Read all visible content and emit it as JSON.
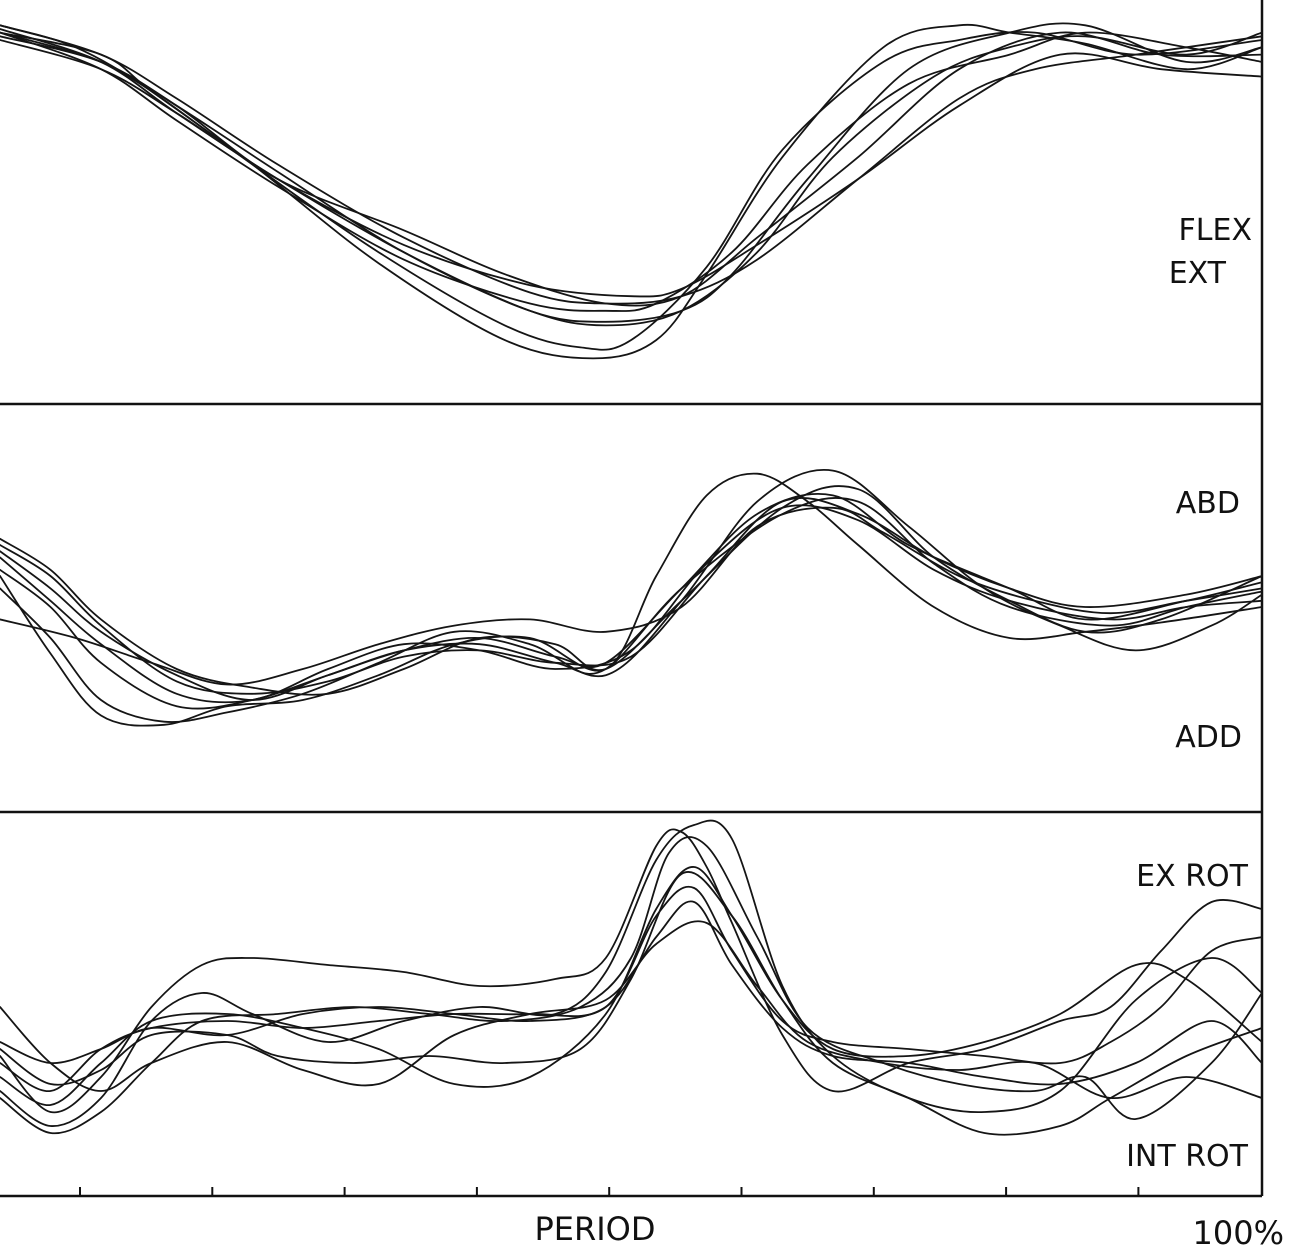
{
  "chart_data": {
    "type": "line",
    "x_axis": {
      "label": "PERIOD",
      "end_label": "100%",
      "range": [
        0,
        100
      ],
      "ticks": [
        10,
        20,
        30,
        40,
        50,
        60,
        70,
        80,
        90
      ],
      "tick_labels": []
    },
    "note": "Overlaid traces of repeated cycles; y units not shown, values are relative (0 = bottom, 1 = top of each panel).",
    "panels": [
      {
        "label_top": "FLEX",
        "label_bottom": "EXT",
        "ylim": [
          0,
          1
        ],
        "traces": [
          {
            "x": [
              0,
              8,
              12,
              20,
              30,
              40,
              47,
              52,
              56,
              62,
              70,
              76,
              80,
              86,
              94,
              100
            ],
            "y": [
              0.96,
              0.9,
              0.8,
              0.6,
              0.33,
              0.12,
              0.07,
              0.12,
              0.3,
              0.62,
              0.92,
              0.98,
              0.96,
              0.93,
              0.86,
              0.92
            ]
          },
          {
            "x": [
              0,
              6,
              12,
              20,
              30,
              40,
              46,
              50,
              56,
              62,
              70,
              76,
              82,
              90,
              100
            ],
            "y": [
              0.98,
              0.92,
              0.8,
              0.6,
              0.36,
              0.16,
              0.1,
              0.12,
              0.32,
              0.64,
              0.88,
              0.94,
              0.96,
              0.9,
              0.94
            ]
          },
          {
            "x": [
              0,
              8,
              14,
              22,
              32,
              42,
              48,
              54,
              60,
              66,
              74,
              80,
              86,
              94,
              100
            ],
            "y": [
              0.97,
              0.88,
              0.74,
              0.56,
              0.36,
              0.2,
              0.16,
              0.2,
              0.36,
              0.62,
              0.84,
              0.92,
              0.95,
              0.9,
              0.96
            ]
          },
          {
            "x": [
              0,
              8,
              14,
              22,
              32,
              42,
              48,
              54,
              58,
              64,
              72,
              80,
              86,
              94,
              100
            ],
            "y": [
              0.95,
              0.88,
              0.76,
              0.58,
              0.36,
              0.2,
              0.17,
              0.2,
              0.3,
              0.56,
              0.86,
              0.96,
              0.98,
              0.88,
              0.92
            ]
          },
          {
            "x": [
              0,
              8,
              14,
              22,
              32,
              42,
              48,
              52,
              58,
              64,
              72,
              80,
              86,
              94,
              100
            ],
            "y": [
              0.96,
              0.86,
              0.72,
              0.54,
              0.34,
              0.22,
              0.2,
              0.22,
              0.36,
              0.6,
              0.82,
              0.9,
              0.96,
              0.92,
              0.88
            ]
          },
          {
            "x": [
              0,
              8,
              14,
              22,
              32,
              42,
              48,
              54,
              60,
              68,
              76,
              82,
              90,
              100
            ],
            "y": [
              0.98,
              0.9,
              0.78,
              0.6,
              0.4,
              0.25,
              0.22,
              0.24,
              0.34,
              0.56,
              0.78,
              0.86,
              0.9,
              0.95
            ]
          },
          {
            "x": [
              0,
              8,
              14,
              22,
              32,
              40,
              48,
              54,
              60,
              68,
              76,
              84,
              92,
              100
            ],
            "y": [
              0.96,
              0.88,
              0.76,
              0.56,
              0.42,
              0.3,
              0.22,
              0.24,
              0.4,
              0.62,
              0.86,
              0.96,
              0.9,
              0.9
            ]
          },
          {
            "x": [
              0,
              8,
              14,
              22,
              32,
              42,
              50,
              54,
              60,
              68,
              76,
              84,
              92,
              100
            ],
            "y": [
              0.94,
              0.86,
              0.74,
              0.56,
              0.38,
              0.27,
              0.24,
              0.26,
              0.38,
              0.56,
              0.76,
              0.9,
              0.86,
              0.84
            ]
          }
        ]
      },
      {
        "label_top": "ABD",
        "label_bottom": "ADD",
        "ylim": [
          0,
          1
        ],
        "traces": [
          {
            "x": [
              0,
              4,
              8,
              13,
              18,
              24,
              30,
              36,
              42,
              48,
              52,
              56,
              60,
              64,
              68,
              74,
              80,
              86,
              92,
              100
            ],
            "y": [
              0.6,
              0.35,
              0.15,
              0.12,
              0.18,
              0.2,
              0.28,
              0.38,
              0.4,
              0.3,
              0.6,
              0.86,
              0.93,
              0.84,
              0.7,
              0.5,
              0.4,
              0.42,
              0.45,
              0.5
            ]
          },
          {
            "x": [
              0,
              4,
              8,
              13,
              18,
              24,
              30,
              36,
              42,
              48,
              54,
              60,
              66,
              72,
              78,
              84,
              90,
              96,
              100
            ],
            "y": [
              0.56,
              0.4,
              0.2,
              0.13,
              0.16,
              0.22,
              0.32,
              0.42,
              0.38,
              0.28,
              0.52,
              0.84,
              0.94,
              0.76,
              0.56,
              0.44,
              0.36,
              0.44,
              0.54
            ]
          },
          {
            "x": [
              0,
              4,
              8,
              14,
              20,
              26,
              32,
              38,
              44,
              48,
              54,
              62,
              68,
              74,
              80,
              86,
              92,
              100
            ],
            "y": [
              0.72,
              0.62,
              0.46,
              0.3,
              0.24,
              0.22,
              0.3,
              0.4,
              0.38,
              0.3,
              0.52,
              0.82,
              0.88,
              0.66,
              0.52,
              0.42,
              0.46,
              0.6
            ]
          },
          {
            "x": [
              0,
              4,
              8,
              14,
              20,
              26,
              32,
              38,
              44,
              48,
              54,
              60,
              66,
              72,
              80,
              86,
              94,
              100
            ],
            "y": [
              0.68,
              0.56,
              0.42,
              0.28,
              0.2,
              0.28,
              0.36,
              0.4,
              0.34,
              0.32,
              0.56,
              0.8,
              0.86,
              0.7,
              0.56,
              0.46,
              0.52,
              0.58
            ]
          },
          {
            "x": [
              0,
              4,
              8,
              14,
              20,
              26,
              32,
              38,
              44,
              50,
              56,
              62,
              68,
              74,
              80,
              86,
              94,
              100
            ],
            "y": [
              0.7,
              0.6,
              0.44,
              0.26,
              0.22,
              0.26,
              0.34,
              0.36,
              0.32,
              0.34,
              0.6,
              0.84,
              0.8,
              0.66,
              0.56,
              0.5,
              0.54,
              0.6
            ]
          },
          {
            "x": [
              0,
              4,
              8,
              14,
              20,
              26,
              32,
              38,
              44,
              50,
              56,
              62,
              68,
              74,
              80,
              88,
              94,
              100
            ],
            "y": [
              0.66,
              0.52,
              0.38,
              0.22,
              0.2,
              0.3,
              0.38,
              0.36,
              0.3,
              0.36,
              0.64,
              0.82,
              0.78,
              0.62,
              0.52,
              0.46,
              0.5,
              0.52
            ]
          },
          {
            "x": [
              0,
              4,
              8,
              14,
              20,
              26,
              32,
              38,
              44,
              48,
              54,
              62,
              68,
              74,
              80,
              88,
              94,
              100
            ],
            "y": [
              0.62,
              0.5,
              0.32,
              0.18,
              0.2,
              0.28,
              0.36,
              0.38,
              0.32,
              0.3,
              0.56,
              0.8,
              0.84,
              0.64,
              0.5,
              0.44,
              0.5,
              0.55
            ]
          },
          {
            "x": [
              0,
              6,
              12,
              18,
              24,
              30,
              36,
              42,
              48,
              54,
              60,
              66,
              70,
              76,
              82,
              88,
              94,
              100
            ],
            "y": [
              0.46,
              0.4,
              0.32,
              0.25,
              0.3,
              0.38,
              0.44,
              0.46,
              0.42,
              0.5,
              0.76,
              0.82,
              0.74,
              0.6,
              0.52,
              0.48,
              0.52,
              0.56
            ]
          }
        ]
      },
      {
        "label_top": "EX ROT",
        "label_bottom": "INT ROT",
        "ylim": [
          0,
          1
        ],
        "traces": [
          {
            "x": [
              0,
              4,
              8,
              12,
              16,
              20,
              26,
              32,
              38,
              44,
              48,
              52,
              54,
              56,
              58,
              62,
              66,
              72,
              78,
              84,
              88,
              92,
              96,
              100
            ],
            "y": [
              0.32,
              0.16,
              0.26,
              0.46,
              0.58,
              0.6,
              0.58,
              0.56,
              0.52,
              0.54,
              0.6,
              0.92,
              0.96,
              0.86,
              0.7,
              0.38,
              0.22,
              0.3,
              0.34,
              0.42,
              0.46,
              0.62,
              0.76,
              0.74
            ]
          },
          {
            "x": [
              0,
              4,
              8,
              12,
              16,
              20,
              26,
              32,
              38,
              44,
              48,
              52,
              55,
              58,
              62,
              66,
              72,
              78,
              84,
              90,
              96,
              100
            ],
            "y": [
              0.22,
              0.12,
              0.2,
              0.42,
              0.5,
              0.44,
              0.36,
              0.42,
              0.46,
              0.44,
              0.56,
              0.88,
              0.98,
              0.94,
              0.52,
              0.32,
              0.2,
              0.16,
              0.22,
              0.48,
              0.6,
              0.5
            ]
          },
          {
            "x": [
              0,
              4,
              8,
              12,
              16,
              22,
              28,
              34,
              40,
              46,
              50,
              53,
              56,
              60,
              64,
              70,
              76,
              82,
              86,
              90,
              96,
              100
            ],
            "y": [
              0.2,
              0.1,
              0.16,
              0.3,
              0.42,
              0.44,
              0.46,
              0.44,
              0.42,
              0.46,
              0.6,
              0.9,
              0.92,
              0.66,
              0.4,
              0.3,
              0.24,
              0.22,
              0.26,
              0.14,
              0.3,
              0.5
            ]
          },
          {
            "x": [
              0,
              4,
              8,
              12,
              18,
              24,
              30,
              36,
              42,
              48,
              52,
              55,
              58,
              62,
              66,
              72,
              78,
              84,
              90,
              94,
              100
            ],
            "y": [
              0.26,
              0.18,
              0.3,
              0.42,
              0.44,
              0.4,
              0.34,
              0.24,
              0.26,
              0.44,
              0.74,
              0.86,
              0.72,
              0.48,
              0.34,
              0.32,
              0.36,
              0.44,
              0.58,
              0.54,
              0.36
            ]
          },
          {
            "x": [
              0,
              4,
              8,
              12,
              18,
              24,
              30,
              36,
              42,
              48,
              52,
              55,
              58,
              62,
              66,
              72,
              78,
              84,
              88,
              92,
              96,
              100
            ],
            "y": [
              0.3,
              0.22,
              0.34,
              0.4,
              0.42,
              0.4,
              0.42,
              0.44,
              0.44,
              0.46,
              0.72,
              0.8,
              0.62,
              0.42,
              0.36,
              0.34,
              0.32,
              0.3,
              0.36,
              0.46,
              0.62,
              0.66
            ]
          },
          {
            "x": [
              0,
              4,
              8,
              12,
              18,
              24,
              30,
              36,
              42,
              48,
              52,
              55,
              58,
              62,
              66,
              72,
              78,
              84,
              90,
              96,
              100
            ],
            "y": [
              0.36,
              0.3,
              0.34,
              0.4,
              0.38,
              0.44,
              0.46,
              0.44,
              0.42,
              0.46,
              0.66,
              0.76,
              0.58,
              0.4,
              0.32,
              0.3,
              0.26,
              0.24,
              0.3,
              0.42,
              0.3
            ]
          },
          {
            "x": [
              0,
              4,
              8,
              12,
              18,
              24,
              30,
              36,
              42,
              48,
              52,
              56,
              60,
              64,
              70,
              76,
              82,
              88,
              94,
              100
            ],
            "y": [
              0.46,
              0.3,
              0.22,
              0.3,
              0.36,
              0.28,
              0.24,
              0.38,
              0.44,
              0.48,
              0.64,
              0.7,
              0.52,
              0.36,
              0.3,
              0.28,
              0.3,
              0.2,
              0.26,
              0.2
            ]
          },
          {
            "x": [
              0,
              4,
              8,
              12,
              18,
              22,
              28,
              34,
              40,
              46,
              50,
              54,
              58,
              62,
              66,
              72,
              78,
              84,
              88,
              94,
              100
            ],
            "y": [
              0.34,
              0.24,
              0.28,
              0.38,
              0.38,
              0.32,
              0.3,
              0.32,
              0.3,
              0.34,
              0.54,
              0.84,
              0.72,
              0.48,
              0.3,
              0.2,
              0.1,
              0.12,
              0.2,
              0.32,
              0.4
            ]
          }
        ]
      }
    ]
  }
}
